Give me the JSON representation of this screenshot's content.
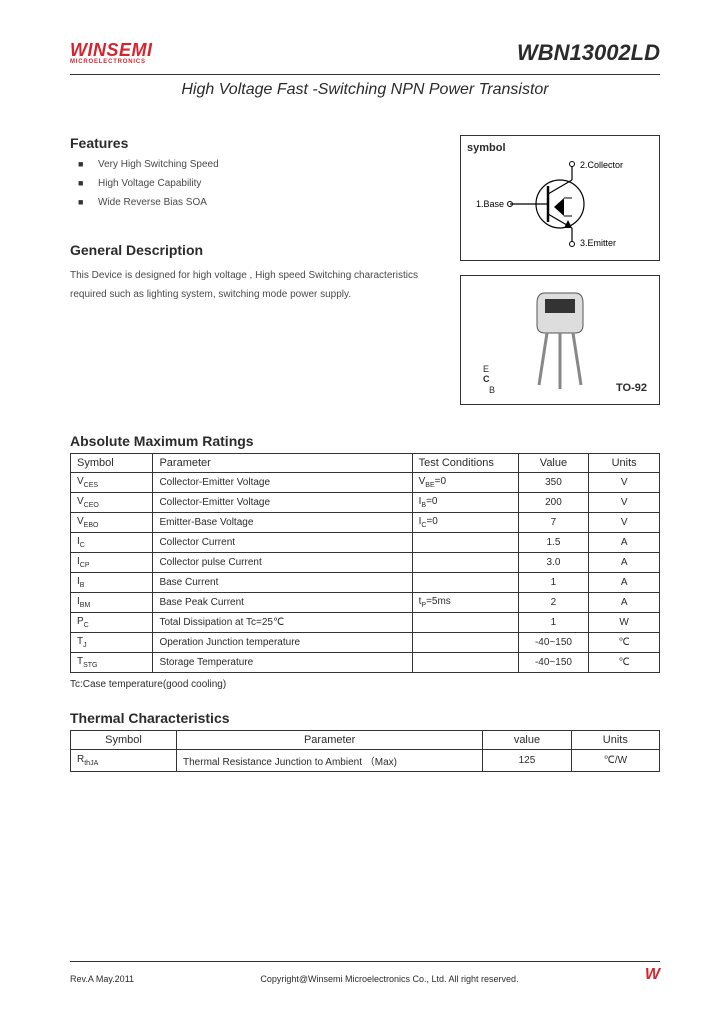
{
  "logo": {
    "name": "WINSEMI",
    "sub": "MICROELECTRONICS"
  },
  "partNumber": "WBN13002LD",
  "subtitle": "High Voltage Fast -Switching NPN Power Transistor",
  "features": {
    "title": "Features",
    "items": [
      "Very High Switching Speed",
      "High Voltage Capability",
      "Wide Reverse Bias SOA"
    ]
  },
  "description": {
    "title": "General Description",
    "text": "This Device is designed for high voltage , High speed Switching characteristics required such as lighting system, switching mode power supply."
  },
  "symbol": {
    "label": "symbol",
    "pins": {
      "base": "1.Base",
      "collector": "2.Collector",
      "emitter": "3.Emitter"
    }
  },
  "package": {
    "name": "TO-92",
    "pins": [
      "E",
      "C",
      "B"
    ]
  },
  "absMax": {
    "title": "Absolute Maximum Ratings",
    "headers": [
      "Symbol",
      "Parameter",
      "Test Conditions",
      "Value",
      "Units"
    ],
    "rows": [
      {
        "sym": "V",
        "sub": "CES",
        "param": "Collector-Emitter Voltage",
        "test": "V",
        "testsub": "BE",
        "testsuffix": "=0",
        "val": "350",
        "unit": "V"
      },
      {
        "sym": "V",
        "sub": "CEO",
        "param": "Collector-Emitter Voltage",
        "test": "I",
        "testsub": "B",
        "testsuffix": "=0",
        "val": "200",
        "unit": "V"
      },
      {
        "sym": "V",
        "sub": "EBO",
        "param": "Emitter-Base Voltage",
        "test": "I",
        "testsub": "C",
        "testsuffix": "=0",
        "val": "7",
        "unit": "V"
      },
      {
        "sym": "I",
        "sub": "C",
        "param": "Collector Current",
        "test": "",
        "testsub": "",
        "testsuffix": "",
        "val": "1.5",
        "unit": "A"
      },
      {
        "sym": "I",
        "sub": "CP",
        "param": "Collector pulse Current",
        "test": "",
        "testsub": "",
        "testsuffix": "",
        "val": "3.0",
        "unit": "A"
      },
      {
        "sym": "I",
        "sub": "B",
        "param": "Base Current",
        "test": "",
        "testsub": "",
        "testsuffix": "",
        "val": "1",
        "unit": "A"
      },
      {
        "sym": "I",
        "sub": "BM",
        "param": "Base Peak Current",
        "test": "t",
        "testsub": "P",
        "testsuffix": "=5ms",
        "val": "2",
        "unit": "A"
      },
      {
        "sym": "P",
        "sub": "C",
        "param": "Total Dissipation at Tc=25℃",
        "test": "",
        "testsub": "",
        "testsuffix": "",
        "val": "1",
        "unit": "W"
      },
      {
        "sym": "T",
        "sub": "J",
        "param": "Operation Junction temperature",
        "test": "",
        "testsub": "",
        "testsuffix": "",
        "val": "-40~150",
        "unit": "℃"
      },
      {
        "sym": "T",
        "sub": "STG",
        "param": "Storage Temperature",
        "test": "",
        "testsub": "",
        "testsuffix": "",
        "val": "-40~150",
        "unit": "℃"
      }
    ],
    "note": "Tc:Case temperature(good cooling)"
  },
  "thermal": {
    "title": "Thermal Characteristics",
    "headers": [
      "Symbol",
      "Parameter",
      "value",
      "Units"
    ],
    "rows": [
      {
        "sym": "R",
        "sub": "thJA",
        "param": "Thermal Resistance Junction to Ambient （Max)",
        "val": "125",
        "unit": "℃/W"
      }
    ]
  },
  "footer": {
    "rev": "Rev.A May.2011",
    "copyright": "Copyright@Winsemi Microelectronics Co., Ltd. All right reserved.",
    "logo": "W"
  }
}
